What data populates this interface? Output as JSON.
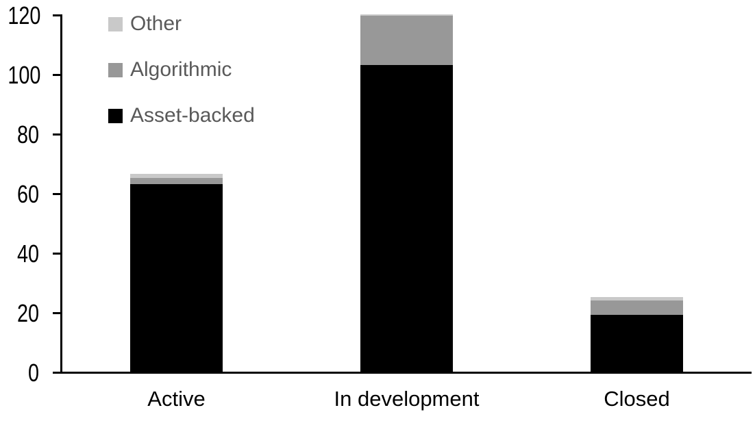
{
  "chart_data": {
    "type": "bar",
    "variant": "stacked",
    "title": "",
    "xlabel": "",
    "ylabel": "",
    "categories": [
      "Active",
      "In development",
      "Closed"
    ],
    "series": [
      {
        "name": "Asset-backed",
        "color": "#000000",
        "values": [
          63,
          103,
          19
        ]
      },
      {
        "name": "Algorithmic",
        "color": "#989898",
        "values": [
          2,
          16.5,
          5
        ]
      },
      {
        "name": "Other",
        "color": "#c9c9c9",
        "values": [
          1.5,
          0.5,
          1
        ]
      }
    ],
    "stack_totals": [
      66.5,
      120,
      25
    ],
    "y_axis": {
      "min": 0,
      "max": 120,
      "tick_step": 20,
      "tick_labels": [
        "0",
        "20",
        "40",
        "60",
        "80",
        "100",
        "120"
      ]
    },
    "grid": false,
    "legend": {
      "position": "top-left",
      "order_top_to_bottom": [
        "Other",
        "Algorithmic",
        "Asset-backed"
      ],
      "text_color": "#595959"
    },
    "colors": {
      "axis": "#000000",
      "background": "#ffffff",
      "tick_label": "#000000"
    }
  }
}
